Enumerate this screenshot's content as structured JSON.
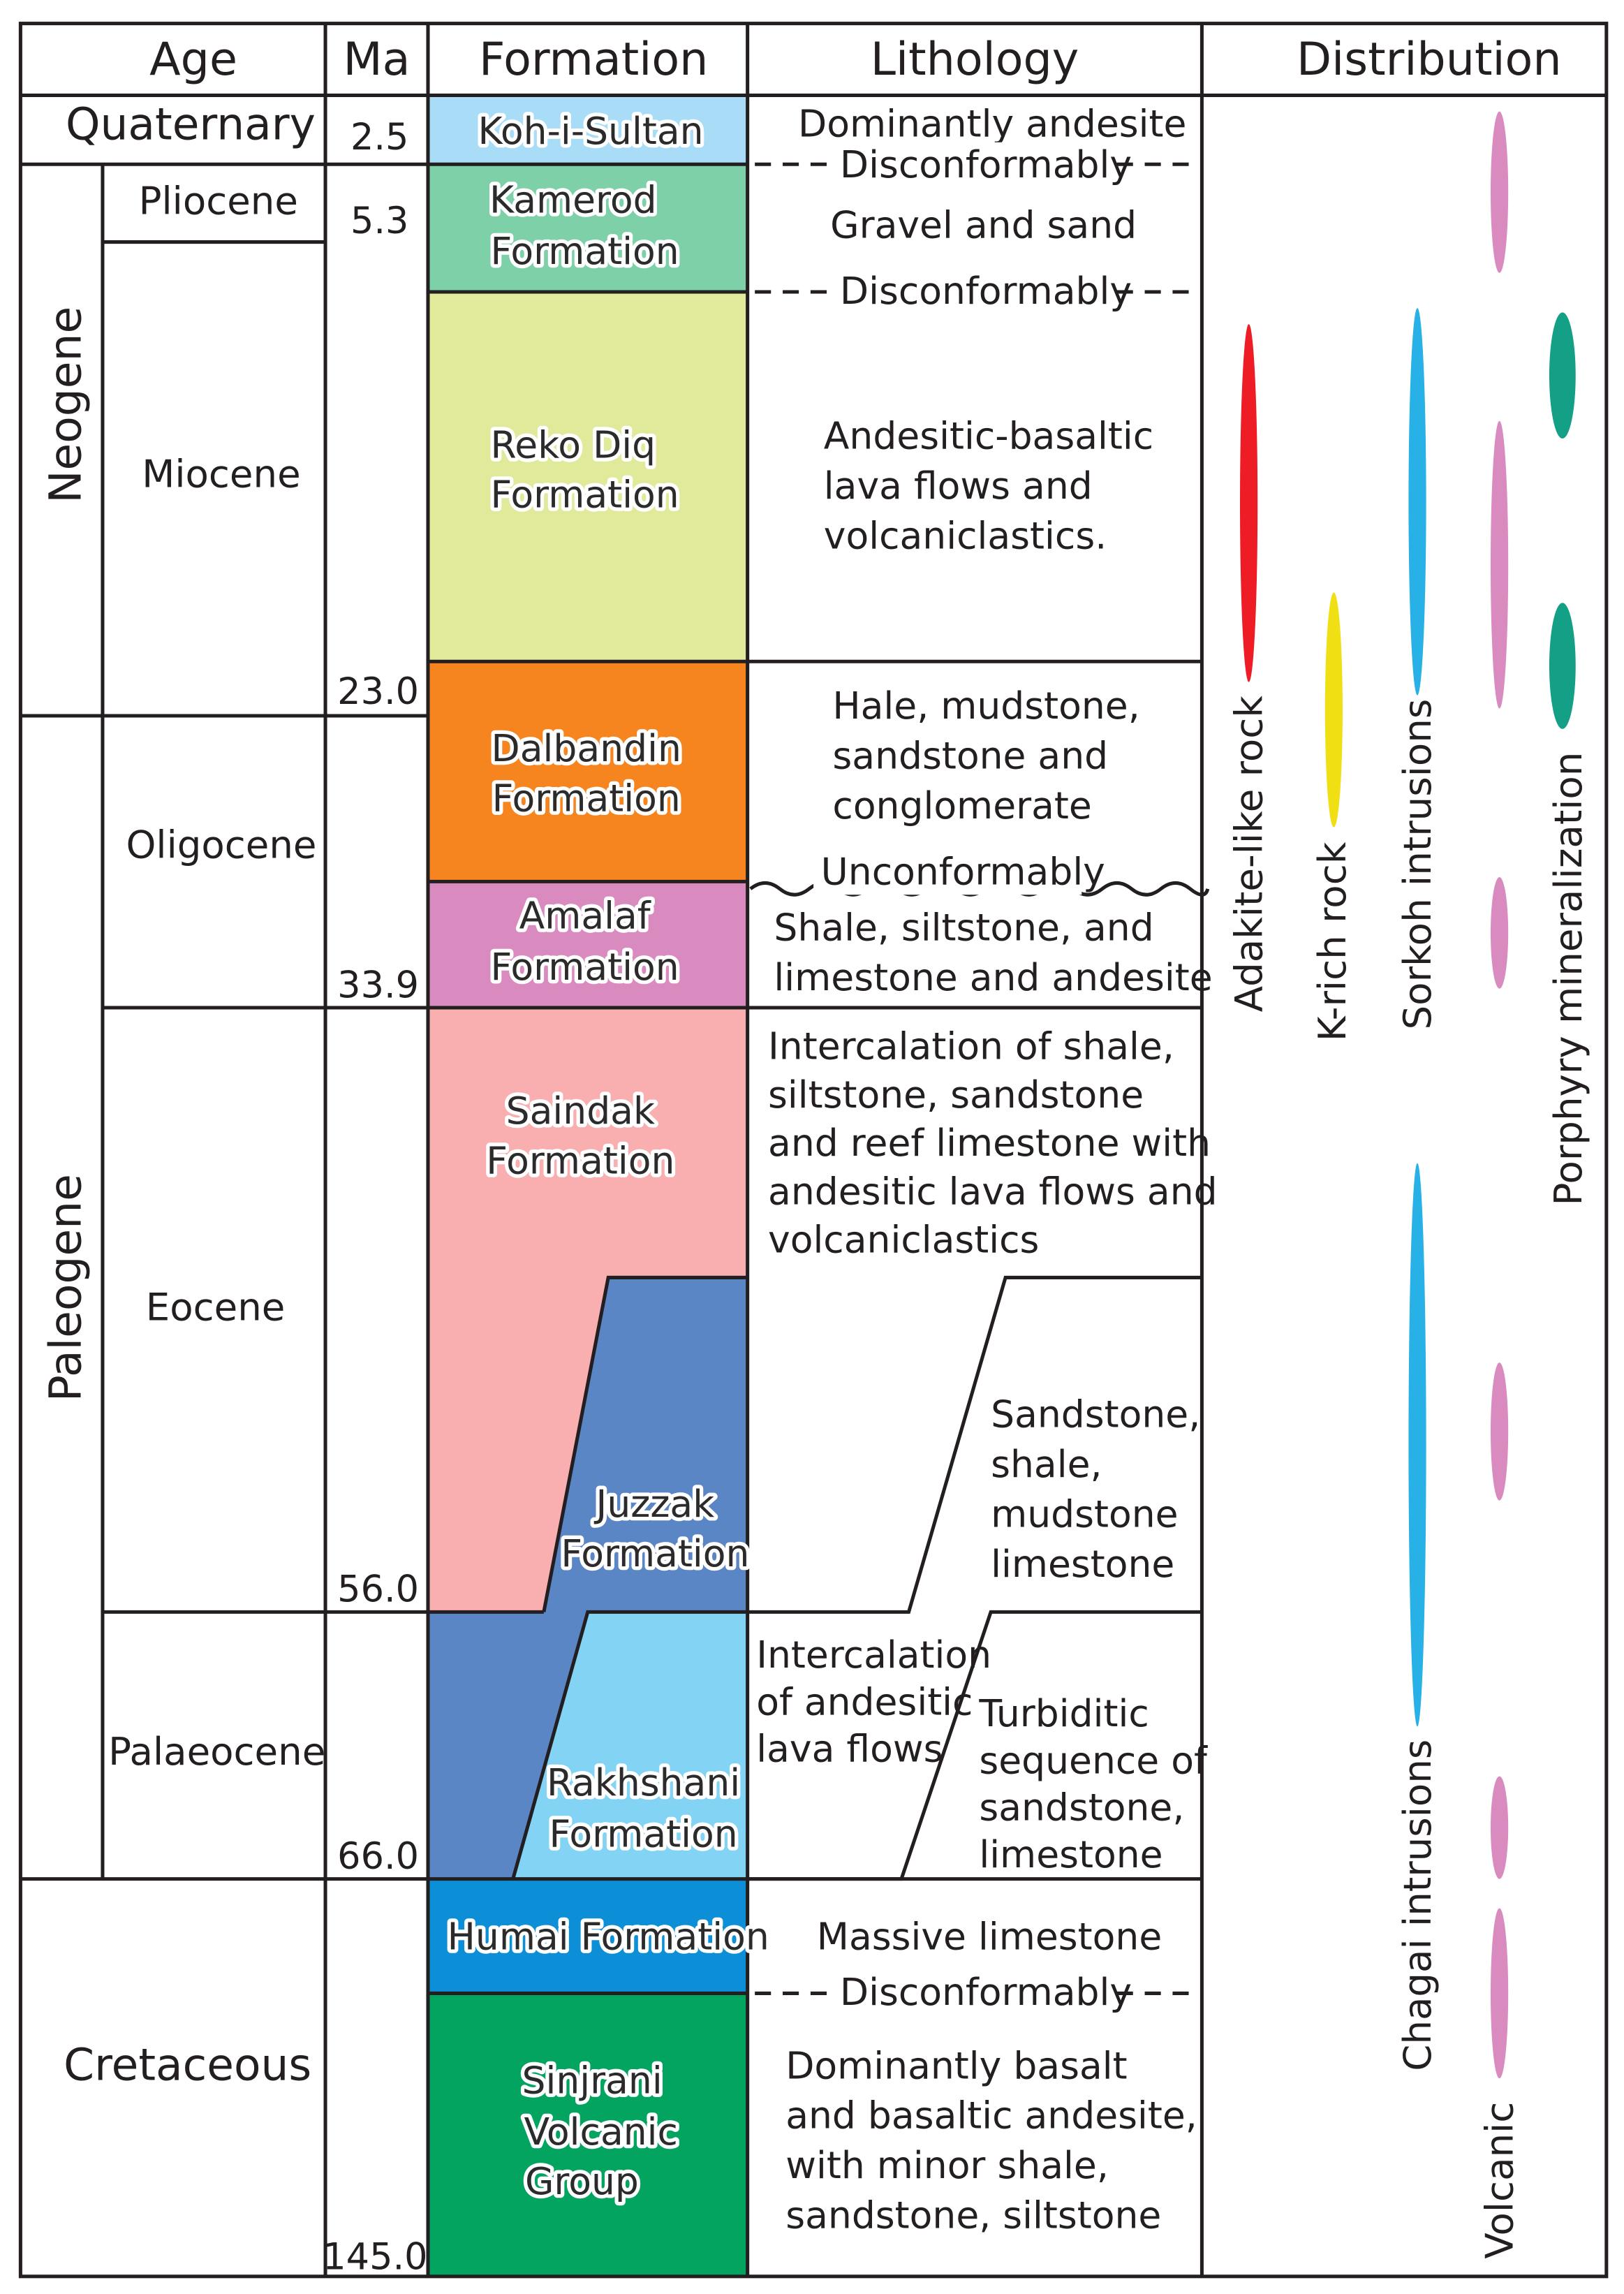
{
  "headers": {
    "age": "Age",
    "ma": "Ma",
    "formation": "Formation",
    "lithology": "Lithology",
    "distribution": "Distribution"
  },
  "eras": {
    "quaternary": "Quaternary",
    "neogene": "Neogene",
    "paleogene": "Paleogene",
    "cretaceous": "Cretaceous"
  },
  "epochs": {
    "pliocene": "Pliocene",
    "miocene": "Miocene",
    "oligocene": "Oligocene",
    "eocene": "Eocene",
    "palaeocene": "Palaeocene"
  },
  "ma": {
    "m2_5": "2.5",
    "m5_3": "5.3",
    "m23": "23.0",
    "m33_9": "33.9",
    "m56": "56.0",
    "m66": "66.0",
    "m145": "145.0"
  },
  "formations": {
    "koh": {
      "line1": "Koh-i-Sultan",
      "color": "#a9dcf6"
    },
    "kamerod": {
      "line1": "Kamerod",
      "line2": "Formation",
      "color": "#7dd0a8"
    },
    "reko": {
      "line1": "Reko Diq",
      "line2": "Formation",
      "color": "#e1e99b"
    },
    "dalbandin": {
      "line1": "Dalbandin",
      "line2": "Formation",
      "color": "#f7851f"
    },
    "amalaf": {
      "line1": "Amalaf",
      "line2": "Formation",
      "color": "#d98bc0"
    },
    "saindak": {
      "line1": "Saindak",
      "line2": "Formation",
      "color": "#f9aeb0"
    },
    "juzzak": {
      "line1": "Juzzak",
      "line2": "Formation",
      "color": "#5a86c6"
    },
    "rakhshani": {
      "line1": "Rakhshani",
      "line2": "Formation",
      "color": "#82d3f4"
    },
    "humai": {
      "line1": "Humai Formation",
      "color": "#0c8fd6"
    },
    "sinjrani": {
      "line1": "Sinjrani",
      "line2": "Volcanic",
      "line3": "Group",
      "color": "#02a460"
    }
  },
  "lithology": {
    "koh": "Dominantly andesite",
    "disconformably": "Disconformably",
    "kamerod": "Gravel and sand",
    "reko": [
      "Andesitic-basaltic",
      "lava flows and",
      "volcaniclastics."
    ],
    "dalbandin": [
      "Hale, mudstone,",
      "sandstone and",
      "conglomerate"
    ],
    "unconformably": "Unconformably",
    "amalaf": [
      "Shale, siltstone, and",
      "limestone and andesite"
    ],
    "saindak": [
      "Intercalation of shale,",
      "siltstone, sandstone",
      "and reef limestone with",
      "andesitic lava flows and",
      "volcaniclastics"
    ],
    "juzzak": [
      "Sandstone,",
      "shale,",
      "mudstone",
      "limestone"
    ],
    "rakhshani_left": [
      "Intercalation",
      "of andesitic",
      "lava flows"
    ],
    "rakhshani_right": [
      "Turbiditic",
      "sequence of",
      "sandstone,",
      "limestone"
    ],
    "humai": "Massive limestone",
    "sinjrani": [
      "Dominantly basalt",
      "and basaltic andesite,",
      "with minor shale,",
      "sandstone, siltstone"
    ]
  },
  "distribution": {
    "adakite": {
      "label": "Adakite-like rock",
      "color": "#ee1c25"
    },
    "krich": {
      "label": "K-rich rock",
      "color": "#f0df13"
    },
    "sorkoh": {
      "label": "Sorkoh intrusions",
      "color": "#27b1e6"
    },
    "chagai": {
      "label": "Chagai intrusions",
      "color": "#27b1e6"
    },
    "volcanic": {
      "label": "Volcanic",
      "color": "#d98bc0"
    },
    "porphyry": {
      "label": "Porphyry mineralization",
      "color": "#14a087"
    }
  }
}
